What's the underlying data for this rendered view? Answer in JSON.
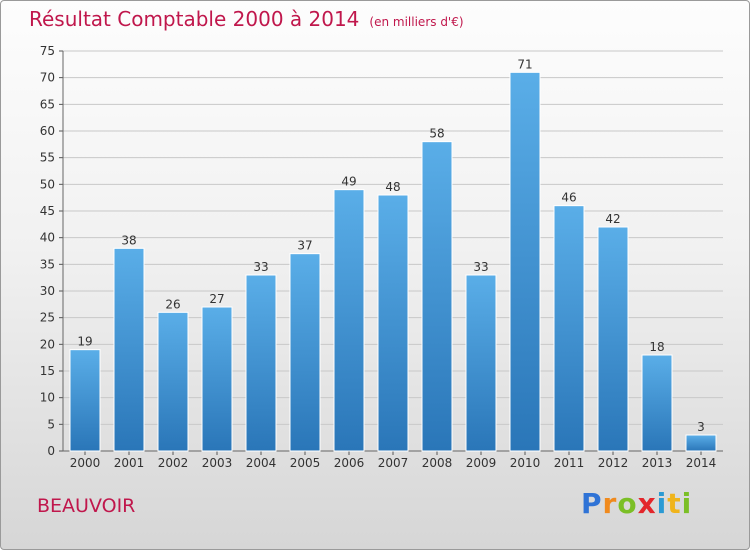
{
  "header": {
    "title": "Résultat Comptable 2000 à 2014",
    "unit": "(en milliers d'€)"
  },
  "commune": "BEAUVOIR",
  "logo": {
    "letters": [
      "P",
      "r",
      "o",
      "x",
      "i",
      "t",
      "i"
    ],
    "colors": [
      "#2f73d6",
      "#f08a1d",
      "#7bbf26",
      "#e3262b",
      "#2a9ad4",
      "#f0b41b",
      "#7bbf26"
    ]
  },
  "chart_data": {
    "type": "bar",
    "title": "Résultat Comptable 2000 à 2014",
    "subtitle": "(en milliers d'€)",
    "categories": [
      "2000",
      "2001",
      "2002",
      "2003",
      "2004",
      "2005",
      "2006",
      "2007",
      "2008",
      "2009",
      "2010",
      "2011",
      "2012",
      "2013",
      "2014"
    ],
    "values": [
      19,
      38,
      26,
      27,
      33,
      37,
      49,
      48,
      58,
      33,
      71,
      46,
      42,
      18,
      3
    ],
    "ylim": [
      0,
      75
    ],
    "yticks": [
      0,
      5,
      10,
      15,
      20,
      25,
      30,
      35,
      40,
      45,
      50,
      55,
      60,
      65,
      70,
      75
    ],
    "grid": true,
    "colors": {
      "bar_top": "#5aaee8",
      "bar_bottom": "#2a76b8",
      "grid": "#c8c8c8",
      "accent": "#c0174c"
    }
  }
}
